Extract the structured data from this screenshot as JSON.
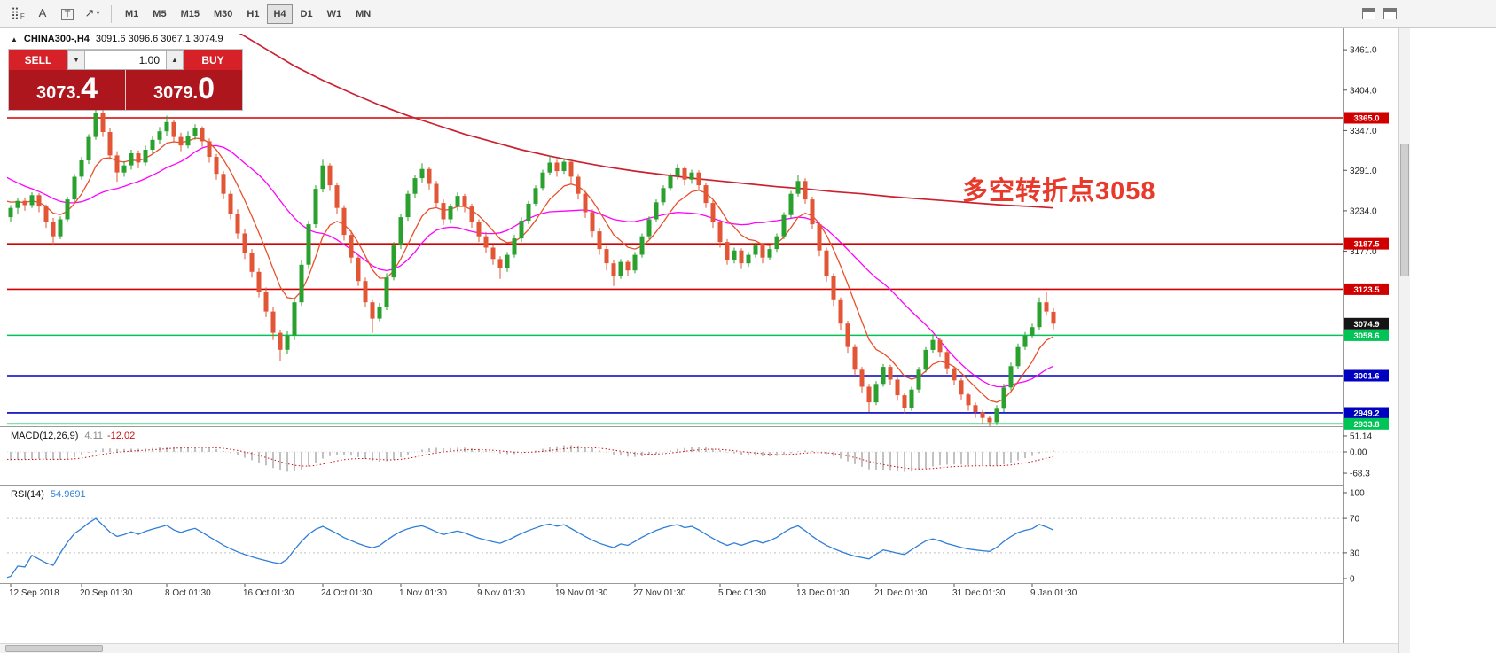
{
  "toolbar": {
    "tools": [
      {
        "id": "pattern-grid",
        "glyph": "⣿",
        "sub": "F"
      },
      {
        "id": "text-label",
        "glyph": "A"
      },
      {
        "id": "text-box",
        "glyph": "T",
        "boxed": true
      },
      {
        "id": "arrow-shapes",
        "glyph": "↗",
        "caret": true
      }
    ],
    "timeframes": [
      {
        "label": "M1"
      },
      {
        "label": "M5"
      },
      {
        "label": "M15"
      },
      {
        "label": "M30"
      },
      {
        "label": "H1"
      },
      {
        "label": "H4",
        "active": true
      },
      {
        "label": "D1"
      },
      {
        "label": "W1"
      },
      {
        "label": "MN"
      }
    ]
  },
  "chart_header": {
    "collapse_icon": "▲",
    "symbol": "CHINA300-,H4",
    "ohlc": "3091.6 3096.6 3067.1 3074.9"
  },
  "trade_panel": {
    "sell_label": "SELL",
    "buy_label": "BUY",
    "volume": "1.00",
    "sell_price_main": "3073.",
    "sell_price_big": "4",
    "buy_price_main": "3079.",
    "buy_price_big": "0"
  },
  "annotation": {
    "text": "多空转折点3058",
    "color": "#e8392b"
  },
  "price_axis": {
    "ticks": [
      3461.0,
      3404.0,
      3347.0,
      3291.0,
      3234.0,
      3177.0
    ]
  },
  "levels": [
    {
      "price": 3365.0,
      "label": "3365.0",
      "line": "#d10000",
      "badge": "#d10000",
      "draw_line": true
    },
    {
      "price": 3187.5,
      "label": "3187.5",
      "line": "#d10000",
      "badge": "#d10000",
      "draw_line": true
    },
    {
      "price": 3123.5,
      "label": "3123.5",
      "line": "#d10000",
      "badge": "#d10000",
      "draw_line": true
    },
    {
      "price": 3074.9,
      "label": "3074.9",
      "line": "#151515",
      "badge": "#151515",
      "draw_line": false,
      "current": true
    },
    {
      "price": 3058.6,
      "label": "3058.6",
      "line": "#00c455",
      "badge": "#00c455",
      "draw_line": true
    },
    {
      "price": 3001.6,
      "label": "3001.6",
      "line": "#0000c0",
      "badge": "#0000c0",
      "draw_line": true
    },
    {
      "price": 2949.2,
      "label": "2949.2",
      "line": "#0000c0",
      "badge": "#0000c0",
      "draw_line": true
    },
    {
      "price": 2933.8,
      "label": "2933.8",
      "line": "#00c455",
      "badge": "#00c455",
      "draw_line": true
    }
  ],
  "time_axis": [
    {
      "i": 0,
      "label": "12 Sep 2018"
    },
    {
      "i": 10,
      "label": "20 Sep 01:30"
    },
    {
      "i": 22,
      "label": "8 Oct 01:30"
    },
    {
      "i": 33,
      "label": "16 Oct 01:30"
    },
    {
      "i": 44,
      "label": "24 Oct 01:30"
    },
    {
      "i": 55,
      "label": "1 Nov 01:30"
    },
    {
      "i": 66,
      "label": "9 Nov 01:30"
    },
    {
      "i": 77,
      "label": "19 Nov 01:30"
    },
    {
      "i": 88,
      "label": "27 Nov 01:30"
    },
    {
      "i": 100,
      "label": "5 Dec 01:30"
    },
    {
      "i": 111,
      "label": "13 Dec 01:30"
    },
    {
      "i": 122,
      "label": "21 Dec 01:30"
    },
    {
      "i": 133,
      "label": "31 Dec 01:30"
    },
    {
      "i": 144,
      "label": "9 Jan 01:30"
    }
  ],
  "indicators": {
    "macd": {
      "label": "MACD(12,26,9)",
      "main": "4.11",
      "signal": "-12.02",
      "ticks": [
        {
          "v": 51.14,
          "label": "51.14"
        },
        {
          "v": 0,
          "label": "0.00"
        },
        {
          "v": -68.3,
          "label": "-68.3"
        }
      ],
      "histogram_color": "#b3b3b3",
      "signal_color": "#cc1111"
    },
    "rsi": {
      "label": "RSI(14)",
      "value": "54.9691",
      "ticks": [
        {
          "v": 100,
          "label": "100"
        },
        {
          "v": 70,
          "label": "70"
        },
        {
          "v": 30,
          "label": "30"
        },
        {
          "v": 0,
          "label": "0"
        }
      ],
      "levels": [
        70,
        30
      ],
      "line_color": "#2f7ed8"
    }
  },
  "chart_data": {
    "type": "candlestick",
    "title": "CHINA300- H4",
    "up_color": "#2aa12e",
    "down_color": "#e25635",
    "seed_closes": [
      3350,
      3342,
      3335,
      3328,
      3320,
      3312,
      3305,
      3298,
      3290,
      3282,
      3275,
      3268,
      3262,
      3256,
      3250,
      3245,
      3242,
      3240,
      3238,
      3236
    ],
    "candles": [
      [
        3225,
        3242,
        3218,
        3238
      ],
      [
        3238,
        3252,
        3230,
        3248
      ],
      [
        3248,
        3253,
        3234,
        3242
      ],
      [
        3242,
        3260,
        3238,
        3256
      ],
      [
        3256,
        3259,
        3232,
        3240
      ],
      [
        3240,
        3243,
        3210,
        3218
      ],
      [
        3218,
        3224,
        3186,
        3198
      ],
      [
        3198,
        3226,
        3194,
        3222
      ],
      [
        3222,
        3254,
        3218,
        3250
      ],
      [
        3250,
        3286,
        3246,
        3282
      ],
      [
        3282,
        3310,
        3278,
        3305
      ],
      [
        3305,
        3342,
        3300,
        3338
      ],
      [
        3338,
        3384,
        3334,
        3372
      ],
      [
        3372,
        3376,
        3338,
        3345
      ],
      [
        3345,
        3350,
        3306,
        3312
      ],
      [
        3312,
        3318,
        3275,
        3288
      ],
      [
        3288,
        3304,
        3282,
        3298
      ],
      [
        3298,
        3320,
        3292,
        3315
      ],
      [
        3315,
        3319,
        3294,
        3302
      ],
      [
        3302,
        3326,
        3298,
        3320
      ],
      [
        3320,
        3340,
        3314,
        3334
      ],
      [
        3334,
        3352,
        3328,
        3346
      ],
      [
        3346,
        3368,
        3340,
        3359
      ],
      [
        3359,
        3362,
        3330,
        3338
      ],
      [
        3338,
        3344,
        3318,
        3326
      ],
      [
        3326,
        3346,
        3322,
        3340
      ],
      [
        3340,
        3356,
        3334,
        3350
      ],
      [
        3350,
        3353,
        3324,
        3332
      ],
      [
        3332,
        3336,
        3302,
        3310
      ],
      [
        3310,
        3314,
        3278,
        3286
      ],
      [
        3286,
        3290,
        3250,
        3258
      ],
      [
        3258,
        3262,
        3222,
        3230
      ],
      [
        3230,
        3236,
        3194,
        3202
      ],
      [
        3202,
        3208,
        3166,
        3175
      ],
      [
        3175,
        3180,
        3140,
        3148
      ],
      [
        3148,
        3153,
        3112,
        3120
      ],
      [
        3120,
        3126,
        3084,
        3092
      ],
      [
        3092,
        3098,
        3052,
        3062
      ],
      [
        3062,
        3066,
        3022,
        3038
      ],
      [
        3038,
        3064,
        3032,
        3058
      ],
      [
        3058,
        3110,
        3052,
        3105
      ],
      [
        3105,
        3164,
        3100,
        3158
      ],
      [
        3158,
        3220,
        3152,
        3215
      ],
      [
        3215,
        3270,
        3210,
        3265
      ],
      [
        3265,
        3306,
        3260,
        3298
      ],
      [
        3298,
        3301,
        3262,
        3270
      ],
      [
        3270,
        3274,
        3230,
        3238
      ],
      [
        3238,
        3242,
        3192,
        3200
      ],
      [
        3200,
        3206,
        3160,
        3168
      ],
      [
        3168,
        3172,
        3128,
        3135
      ],
      [
        3135,
        3140,
        3098,
        3105
      ],
      [
        3105,
        3108,
        3062,
        3082
      ],
      [
        3082,
        3104,
        3078,
        3098
      ],
      [
        3098,
        3146,
        3094,
        3140
      ],
      [
        3140,
        3190,
        3136,
        3185
      ],
      [
        3185,
        3230,
        3180,
        3225
      ],
      [
        3225,
        3262,
        3220,
        3258
      ],
      [
        3258,
        3285,
        3252,
        3280
      ],
      [
        3280,
        3301,
        3274,
        3293
      ],
      [
        3293,
        3296,
        3264,
        3272
      ],
      [
        3272,
        3276,
        3238,
        3245
      ],
      [
        3245,
        3250,
        3214,
        3222
      ],
      [
        3222,
        3244,
        3216,
        3240
      ],
      [
        3240,
        3260,
        3234,
        3255
      ],
      [
        3255,
        3258,
        3232,
        3240
      ],
      [
        3240,
        3244,
        3210,
        3218
      ],
      [
        3218,
        3222,
        3190,
        3198
      ],
      [
        3198,
        3204,
        3174,
        3182
      ],
      [
        3182,
        3186,
        3158,
        3166
      ],
      [
        3166,
        3170,
        3138,
        3154
      ],
      [
        3154,
        3176,
        3148,
        3172
      ],
      [
        3172,
        3200,
        3168,
        3195
      ],
      [
        3195,
        3225,
        3190,
        3220
      ],
      [
        3220,
        3248,
        3215,
        3244
      ],
      [
        3244,
        3270,
        3240,
        3266
      ],
      [
        3266,
        3292,
        3262,
        3288
      ],
      [
        3288,
        3312,
        3284,
        3302
      ],
      [
        3302,
        3306,
        3282,
        3290
      ],
      [
        3290,
        3308,
        3286,
        3303
      ],
      [
        3303,
        3306,
        3274,
        3282
      ],
      [
        3282,
        3286,
        3250,
        3258
      ],
      [
        3258,
        3262,
        3224,
        3232
      ],
      [
        3232,
        3236,
        3196,
        3205
      ],
      [
        3205,
        3210,
        3172,
        3180
      ],
      [
        3180,
        3184,
        3150,
        3160
      ],
      [
        3160,
        3164,
        3128,
        3142
      ],
      [
        3142,
        3166,
        3138,
        3162
      ],
      [
        3162,
        3165,
        3142,
        3150
      ],
      [
        3150,
        3176,
        3146,
        3172
      ],
      [
        3172,
        3202,
        3168,
        3198
      ],
      [
        3198,
        3226,
        3194,
        3222
      ],
      [
        3222,
        3250,
        3218,
        3246
      ],
      [
        3246,
        3270,
        3242,
        3266
      ],
      [
        3266,
        3287,
        3262,
        3283
      ],
      [
        3283,
        3300,
        3278,
        3294
      ],
      [
        3294,
        3297,
        3270,
        3278
      ],
      [
        3278,
        3292,
        3272,
        3288
      ],
      [
        3288,
        3291,
        3262,
        3270
      ],
      [
        3270,
        3274,
        3238,
        3245
      ],
      [
        3245,
        3249,
        3210,
        3218
      ],
      [
        3218,
        3222,
        3182,
        3190
      ],
      [
        3190,
        3194,
        3158,
        3165
      ],
      [
        3165,
        3182,
        3160,
        3178
      ],
      [
        3178,
        3181,
        3152,
        3160
      ],
      [
        3160,
        3176,
        3155,
        3172
      ],
      [
        3172,
        3189,
        3168,
        3185
      ],
      [
        3185,
        3188,
        3160,
        3168
      ],
      [
        3168,
        3184,
        3164,
        3180
      ],
      [
        3180,
        3202,
        3176,
        3198
      ],
      [
        3198,
        3232,
        3194,
        3228
      ],
      [
        3228,
        3262,
        3224,
        3258
      ],
      [
        3258,
        3284,
        3254,
        3276
      ],
      [
        3276,
        3280,
        3244,
        3250
      ],
      [
        3250,
        3254,
        3208,
        3215
      ],
      [
        3215,
        3219,
        3170,
        3178
      ],
      [
        3178,
        3182,
        3134,
        3142
      ],
      [
        3142,
        3146,
        3100,
        3108
      ],
      [
        3108,
        3112,
        3066,
        3075
      ],
      [
        3075,
        3079,
        3034,
        3042
      ],
      [
        3042,
        3046,
        3002,
        3010
      ],
      [
        3010,
        3014,
        2978,
        2986
      ],
      [
        2986,
        2990,
        2950,
        2964
      ],
      [
        2964,
        2994,
        2960,
        2990
      ],
      [
        2990,
        3018,
        2986,
        3014
      ],
      [
        3014,
        3017,
        2988,
        2996
      ],
      [
        2996,
        2999,
        2966,
        2974
      ],
      [
        2974,
        2977,
        2948,
        2956
      ],
      [
        2956,
        2986,
        2952,
        2982
      ],
      [
        2982,
        3014,
        2978,
        3010
      ],
      [
        3010,
        3042,
        3006,
        3038
      ],
      [
        3038,
        3060,
        3034,
        3052
      ],
      [
        3052,
        3055,
        3028,
        3035
      ],
      [
        3035,
        3038,
        3004,
        3012
      ],
      [
        3012,
        3015,
        2988,
        2995
      ],
      [
        2995,
        2998,
        2968,
        2975
      ],
      [
        2975,
        2978,
        2952,
        2960
      ],
      [
        2960,
        2964,
        2942,
        2950
      ],
      [
        2950,
        2953,
        2934,
        2942
      ],
      [
        2942,
        2945,
        2930,
        2936
      ],
      [
        2936,
        2960,
        2932,
        2955
      ],
      [
        2955,
        2990,
        2950,
        2985
      ],
      [
        2985,
        3020,
        2981,
        3015
      ],
      [
        3015,
        3047,
        3011,
        3042
      ],
      [
        3042,
        3063,
        3038,
        3058
      ],
      [
        3058,
        3075,
        3054,
        3070
      ],
      [
        3070,
        3112,
        3066,
        3105
      ],
      [
        3105,
        3120,
        3086,
        3092
      ],
      [
        3091.6,
        3096.6,
        3067.1,
        3074.9
      ]
    ],
    "ma_fast": {
      "period": 8,
      "color": "#e8502a"
    },
    "ma_mid": {
      "period": 20,
      "color": "#ff00ff"
    },
    "ma_slow": {
      "color": "#cc2030",
      "points": [
        [
          31,
          3492
        ],
        [
          36,
          3462
        ],
        [
          40,
          3438
        ],
        [
          44,
          3418
        ],
        [
          48,
          3400
        ],
        [
          52,
          3383
        ],
        [
          56,
          3368
        ],
        [
          60,
          3355
        ],
        [
          64,
          3342
        ],
        [
          68,
          3331
        ],
        [
          72,
          3320
        ],
        [
          76,
          3311
        ],
        [
          80,
          3303
        ],
        [
          84,
          3296
        ],
        [
          88,
          3290
        ],
        [
          92,
          3285
        ],
        [
          96,
          3280
        ],
        [
          100,
          3276
        ],
        [
          104,
          3272
        ],
        [
          108,
          3268
        ],
        [
          112,
          3265
        ],
        [
          116,
          3261
        ],
        [
          120,
          3258
        ],
        [
          124,
          3254
        ],
        [
          128,
          3251
        ],
        [
          132,
          3248
        ],
        [
          136,
          3245
        ],
        [
          140,
          3242
        ],
        [
          144,
          3240
        ],
        [
          147,
          3238
        ]
      ]
    }
  }
}
